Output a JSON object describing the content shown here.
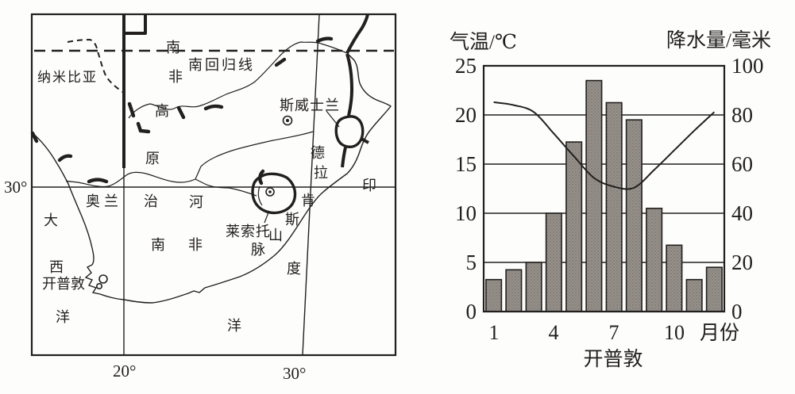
{
  "figure": {
    "colors": {
      "ink": "#22201e",
      "paper": "#fdfdfb",
      "bar_fill": "#97918b"
    }
  },
  "map": {
    "labels": {
      "namibia": "纳米比亚",
      "tropic_of_capricorn": "南回归线",
      "south_africa_plateau": [
        "南",
        "非",
        "高",
        "原"
      ],
      "swaziland": "斯威士兰",
      "drakensberg_mountains": [
        "德",
        "拉",
        "肯",
        "斯",
        "山",
        "脉"
      ],
      "indian_ocean": [
        "印",
        "度",
        "洋"
      ],
      "atlantic_ocean": [
        "大",
        "西",
        "洋"
      ],
      "orange_river": [
        "奥",
        "兰",
        "治",
        "河"
      ],
      "south_africa": [
        "南",
        "非"
      ],
      "lesotho": "莱索托",
      "cape_town": "开普敦",
      "latitude_30": "30°",
      "longitude_20": "20°",
      "longitude_30": "30°"
    }
  },
  "chart_data": {
    "type": "bar",
    "combo": "climograph: precipitation bars + temperature line",
    "title": "开普敦",
    "x_axis": {
      "label": "月份",
      "categories": [
        "1",
        "2",
        "3",
        "4",
        "5",
        "6",
        "7",
        "8",
        "9",
        "10",
        "11",
        "12"
      ],
      "ticks_shown": [
        "1",
        "4",
        "7",
        "10"
      ]
    },
    "left_y_axis": {
      "label": "气温/℃",
      "range": [
        0,
        25
      ],
      "tick_labels": [
        "25",
        "20",
        "15",
        "10",
        "5",
        "0"
      ]
    },
    "right_y_axis": {
      "label": "降水量/毫米",
      "range": [
        0,
        100
      ],
      "tick_labels": [
        "100",
        "80",
        "60",
        "40",
        "20",
        "0"
      ]
    },
    "grid": "horizontal gridlines every 5 °C / 20 mm",
    "series": [
      {
        "name": "降水量",
        "type": "bar",
        "axis": "right",
        "unit": "毫米",
        "values": [
          13,
          17,
          20,
          40,
          69,
          94,
          85,
          78,
          42,
          27,
          13,
          18
        ]
      },
      {
        "name": "气温",
        "type": "line",
        "axis": "left",
        "unit": "℃",
        "values": [
          21.3,
          21.0,
          20.3,
          18.1,
          15.8,
          13.6,
          12.7,
          12.6,
          14.4,
          16.4,
          18.4,
          20.3
        ]
      }
    ]
  }
}
